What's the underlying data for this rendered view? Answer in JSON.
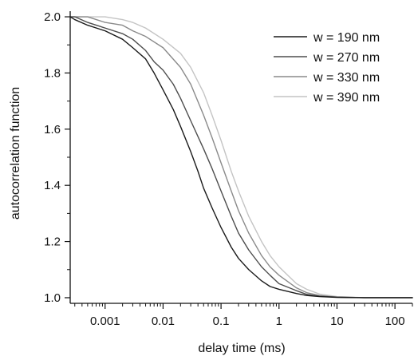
{
  "chart_data": {
    "type": "line",
    "title": "",
    "xlabel": "delay time (ms)",
    "ylabel": "autocorrelation function",
    "xscale": "log",
    "xlim": [
      0.00025,
      200
    ],
    "ylim": [
      0.98,
      2.02
    ],
    "xticks": [
      0.001,
      0.01,
      0.1,
      1,
      10,
      100
    ],
    "xtick_labels": [
      "0.001",
      "0.01",
      "0.1",
      "1",
      "10",
      "100"
    ],
    "yticks": [
      1.0,
      1.2,
      1.4,
      1.6,
      1.8,
      2.0
    ],
    "ytick_labels": [
      "1.0",
      "1.2",
      "1.4",
      "1.6",
      "1.8",
      "2.0"
    ],
    "grid": false,
    "legend_position": "top-right",
    "series": [
      {
        "name": "w = 190 nm",
        "color": "#1a1a1a",
        "x": [
          0.00025,
          0.0003,
          0.0005,
          0.001,
          0.002,
          0.003,
          0.005,
          0.007,
          0.01,
          0.015,
          0.02,
          0.03,
          0.04,
          0.05,
          0.07,
          0.1,
          0.15,
          0.2,
          0.3,
          0.5,
          0.7,
          1,
          2,
          3,
          5,
          10,
          30,
          100,
          200
        ],
        "y": [
          2.0,
          1.99,
          1.97,
          1.95,
          1.92,
          1.89,
          1.85,
          1.8,
          1.74,
          1.67,
          1.61,
          1.52,
          1.45,
          1.39,
          1.32,
          1.25,
          1.18,
          1.14,
          1.1,
          1.06,
          1.04,
          1.03,
          1.015,
          1.008,
          1.004,
          1.001,
          1.0,
          1.0,
          1.0
        ]
      },
      {
        "name": "w = 270 nm",
        "color": "#4d4d4d",
        "x": [
          0.00025,
          0.0003,
          0.0005,
          0.001,
          0.002,
          0.003,
          0.005,
          0.007,
          0.01,
          0.015,
          0.02,
          0.03,
          0.05,
          0.07,
          0.1,
          0.15,
          0.2,
          0.3,
          0.5,
          0.7,
          1,
          2,
          3,
          5,
          10,
          30,
          100,
          200
        ],
        "y": [
          2.0,
          2.0,
          1.98,
          1.96,
          1.94,
          1.92,
          1.88,
          1.84,
          1.81,
          1.76,
          1.71,
          1.63,
          1.53,
          1.46,
          1.38,
          1.29,
          1.23,
          1.17,
          1.11,
          1.08,
          1.05,
          1.025,
          1.012,
          1.005,
          1.002,
          1.0,
          1.0,
          1.0
        ]
      },
      {
        "name": "w = 330 nm",
        "color": "#8a8a8a",
        "x": [
          0.00025,
          0.0003,
          0.0005,
          0.001,
          0.002,
          0.003,
          0.005,
          0.01,
          0.02,
          0.03,
          0.05,
          0.07,
          0.1,
          0.15,
          0.2,
          0.3,
          0.5,
          0.7,
          1,
          2,
          3,
          5,
          10,
          30,
          100,
          200
        ],
        "y": [
          2.0,
          2.0,
          2.0,
          1.98,
          1.97,
          1.95,
          1.93,
          1.89,
          1.82,
          1.76,
          1.65,
          1.57,
          1.48,
          1.38,
          1.31,
          1.23,
          1.15,
          1.11,
          1.08,
          1.035,
          1.018,
          1.008,
          1.002,
          1.0,
          1.0,
          1.0
        ]
      },
      {
        "name": "w = 390 nm",
        "color": "#c4c4c4",
        "x": [
          0.00025,
          0.0003,
          0.0005,
          0.001,
          0.002,
          0.003,
          0.005,
          0.01,
          0.02,
          0.03,
          0.05,
          0.07,
          0.1,
          0.15,
          0.2,
          0.3,
          0.5,
          0.7,
          1,
          2,
          3,
          5,
          10,
          30,
          100,
          200
        ],
        "y": [
          2.0,
          2.0,
          2.0,
          2.0,
          1.99,
          1.98,
          1.96,
          1.92,
          1.87,
          1.82,
          1.73,
          1.65,
          1.56,
          1.45,
          1.38,
          1.29,
          1.2,
          1.15,
          1.11,
          1.05,
          1.03,
          1.013,
          1.004,
          1.0,
          1.0,
          1.0
        ]
      }
    ]
  }
}
